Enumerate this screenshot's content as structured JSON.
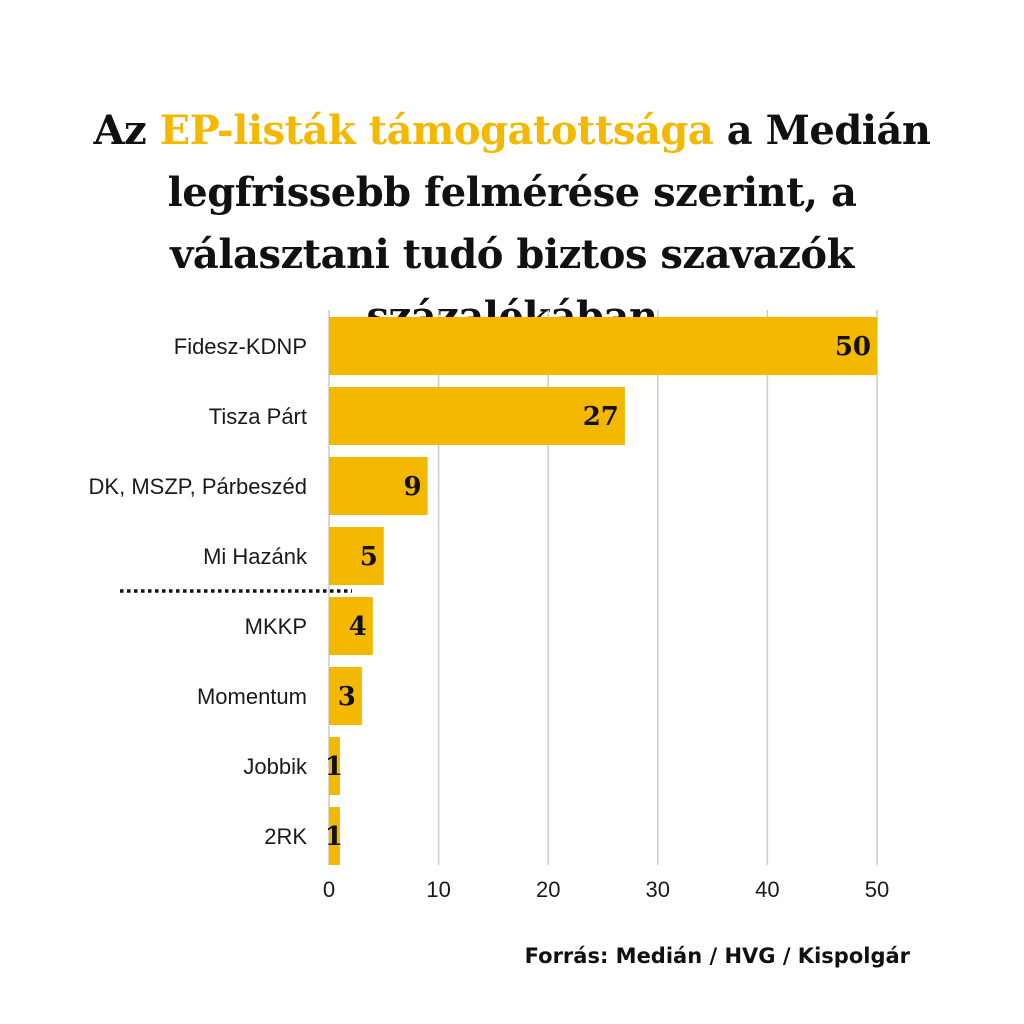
{
  "title": {
    "prefix": "Az ",
    "highlight": "EP-listák támogatottsága",
    "suffix": " a Medián legfrissebb felmérése szerint, a választani tudó biztos szavazók százalékában"
  },
  "source": "Forrás: Medián / HVG / Kispolgár",
  "colors": {
    "bar": "#f5b800",
    "highlight": "#f5b800",
    "grid": "#cccccc",
    "text": "#111111"
  },
  "chart_data": {
    "type": "bar",
    "orientation": "horizontal",
    "categories": [
      "Fidesz-KDNP",
      "Tisza Párt",
      "DK, MSZP, Párbeszéd",
      "Mi Hazánk",
      "MKKP",
      "Momentum",
      "Jobbik",
      "2RK"
    ],
    "values": [
      50,
      27,
      9,
      5,
      4,
      3,
      1,
      1
    ],
    "xlim": [
      0,
      50
    ],
    "xticks": [
      0,
      10,
      20,
      30,
      40,
      50
    ],
    "xticks_labels": [
      "0",
      "10",
      "20",
      "30",
      "40",
      "50"
    ],
    "grid": true,
    "threshold_line": "dotted separator between Mi Hazánk and MKKP"
  }
}
